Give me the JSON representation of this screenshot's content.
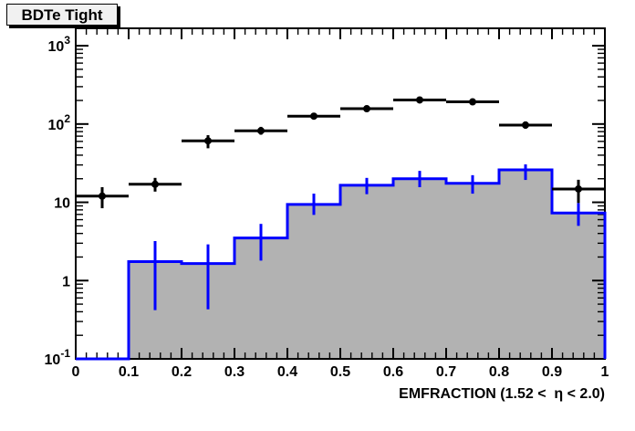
{
  "title": "BDTe Tight",
  "colors": {
    "background": "#ffffff",
    "frame": "#000000",
    "hist_fill": "#b2b2b2",
    "hist_line": "#0000ff",
    "points": "#000000",
    "title_box_fill": "#f1f1f1",
    "title_box_border": "#000000"
  },
  "chart_data": {
    "type": "histogram",
    "title": "BDTe Tight",
    "xlabel": "EMFRACTION (1.52 <  η < 2.0)",
    "ylabel": "",
    "y_scale": "log",
    "grid": false,
    "legend": "none",
    "xlim": [
      0,
      1
    ],
    "ylim": [
      0.1,
      1670
    ],
    "x_axis": {
      "major": [
        0,
        0.1,
        0.2,
        0.3,
        0.4,
        0.5,
        0.6,
        0.7,
        0.8,
        0.9,
        1
      ],
      "labels": [
        "0",
        "0.1",
        "0.2",
        "0.3",
        "0.4",
        "0.5",
        "0.6",
        "0.7",
        "0.8",
        "0.9",
        "1"
      ],
      "minor_step": 0.02
    },
    "y_axis": {
      "major": [
        0.1,
        1,
        10,
        100,
        1000
      ],
      "labels": [
        {
          "base": "10",
          "exp": "-1"
        },
        {
          "base": "1",
          "exp": ""
        },
        {
          "base": "10",
          "exp": ""
        },
        {
          "base": "10",
          "exp": "2"
        },
        {
          "base": "10",
          "exp": "3"
        }
      ],
      "minor_decades": [
        0.1,
        1,
        10,
        100
      ]
    },
    "bin_edges": [
      0,
      0.1,
      0.2,
      0.3,
      0.4,
      0.5,
      0.6,
      0.7,
      0.8,
      0.9,
      1
    ],
    "series": [
      {
        "name": "filled-histogram",
        "type": "step-filled",
        "color": "#0000ff",
        "fill": "#b2b2b2",
        "values": [
          0,
          1.75,
          1.65,
          3.5,
          9.4,
          16.5,
          20.0,
          17.5,
          26.0,
          7.3
        ],
        "err_low": [
          0,
          0.42,
          0.43,
          1.8,
          6.9,
          12.7,
          15.6,
          12.9,
          19.3,
          5.0
        ],
        "err_high": [
          0,
          3.2,
          2.9,
          5.3,
          12.9,
          20.5,
          25.2,
          22.2,
          30.5,
          9.8
        ]
      },
      {
        "name": "data-points",
        "type": "points",
        "marker": "filled-circle",
        "color": "#000000",
        "xerr": 0.05,
        "x": [
          0.05,
          0.15,
          0.25,
          0.35,
          0.45,
          0.55,
          0.65,
          0.75,
          0.85,
          0.95
        ],
        "y": [
          12,
          17,
          61,
          82,
          126,
          157,
          203,
          192,
          97,
          14.8
        ],
        "yerr_low": [
          8.4,
          13.7,
          49,
          73,
          115,
          145,
          189,
          178,
          87,
          9.8
        ],
        "yerr_high": [
          15.6,
          20.5,
          72,
          92,
          138,
          170,
          218,
          206,
          108,
          19.4
        ]
      }
    ]
  }
}
